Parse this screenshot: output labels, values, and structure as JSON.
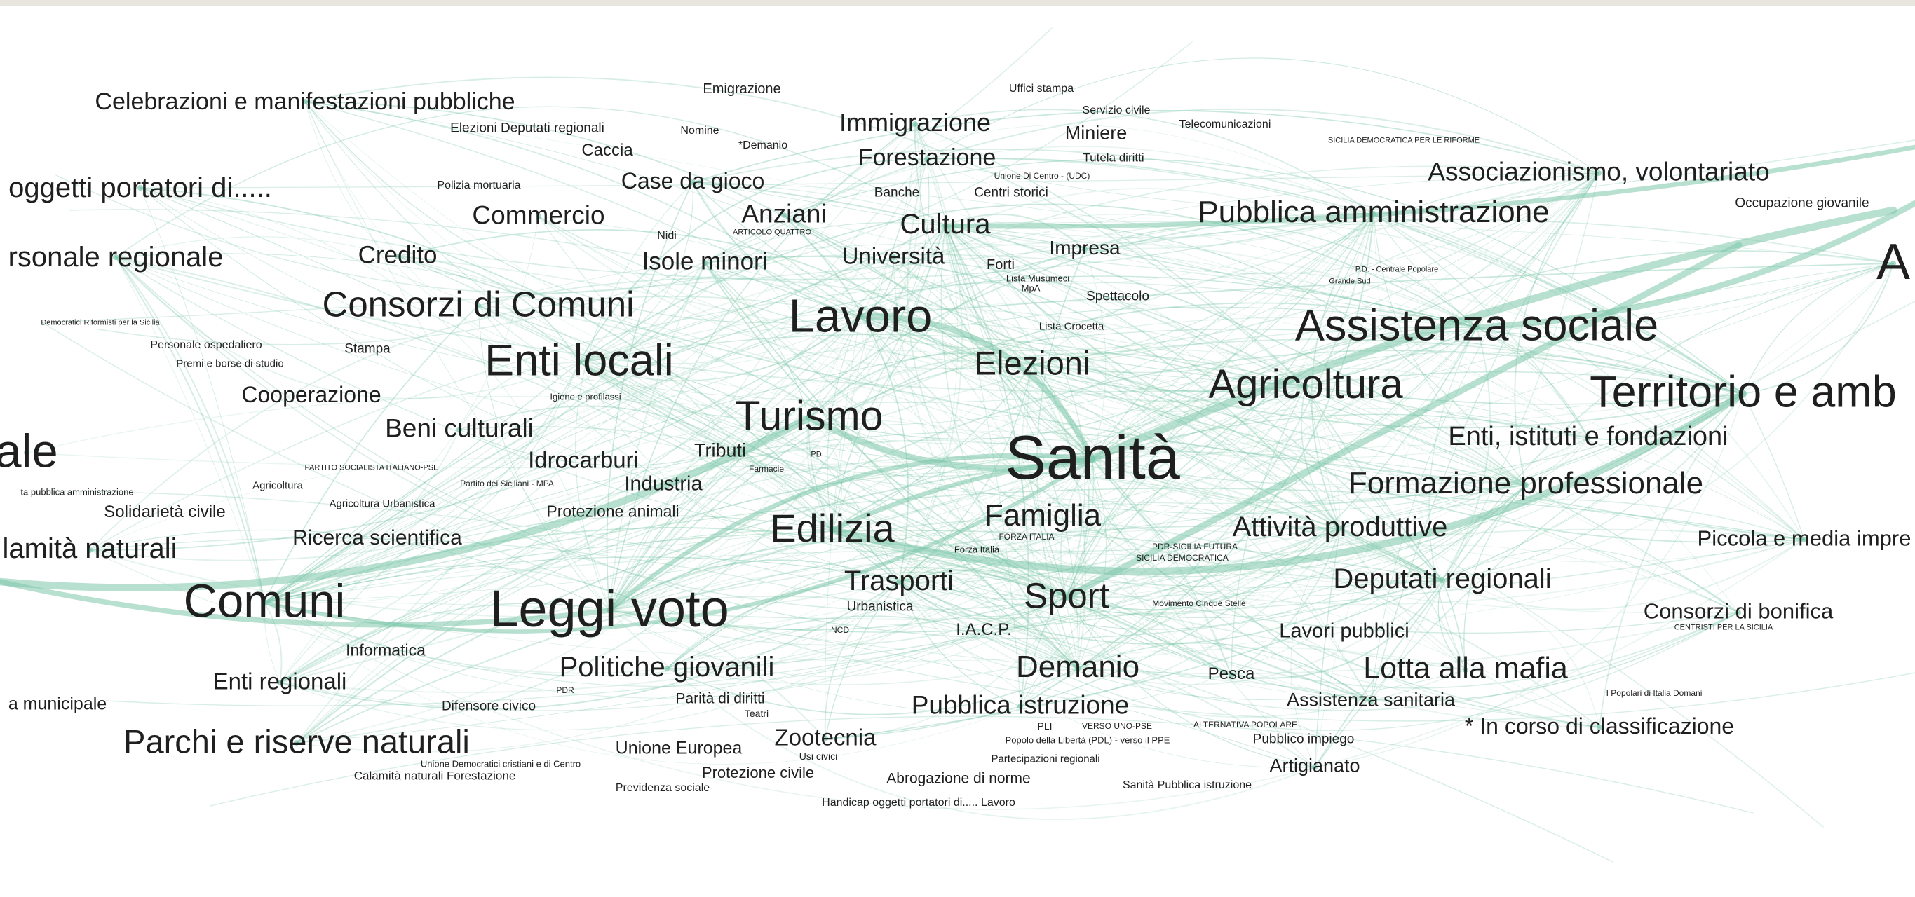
{
  "diagram": {
    "type": "network-graph",
    "edge_color": "#7ec7ab",
    "node_color": "#7ec7ab",
    "label_color": "#1f1f1f",
    "background": "#ffffff"
  },
  "labels": [
    "Celebrazioni e manifestazioni pubbliche",
    "Emigrazione",
    "Uffici stampa",
    "Servizio civile",
    "Elezioni Deputati regionali",
    "Nomine",
    "*Demanio",
    "Immigrazione",
    "Miniere",
    "Telecomunicazioni",
    "Caccia",
    "Forestazione",
    "Tutela diritti",
    "Unione Di Centro - (UDC)",
    "SICILIA DEMOCRATICA PER LE RIFORME",
    "oggetti portatori di.....",
    "Polizia mortuaria",
    "Case da gioco",
    "Banche",
    "Centri storici",
    "Associazionismo, volontariato",
    "Commercio",
    "Anziani",
    "Nidi",
    "ARTICOLO QUATTRO",
    "Cultura",
    "Pubblica amministrazione",
    "Occupazione giovanile",
    "Credito",
    "Isole minori",
    "Università",
    "Forti",
    "Impresa",
    "A",
    "rsonale regionale",
    "P.D. - Centrale Popolare",
    "Grande Sud",
    "Lista Musumeci",
    "MpA",
    "Spettacolo",
    "Consorzi di Comuni",
    "Lavoro",
    "Democratici Riformisti per la Sicilia",
    "Lista Crocetta",
    "Assistenza sociale",
    "Personale ospedaliero",
    "Stampa",
    "Premi e borse di studio",
    "Enti locali",
    "Elezioni",
    "Agricoltura",
    "Territorio e amb",
    "Cooperazione",
    "Igiene e profilassi",
    "Turismo",
    "Beni culturali",
    "Enti, istituti e fondazioni",
    "Sanità",
    "ale",
    "Tributi",
    "PARTITO SOCIALISTA ITALIANO-PSE",
    "Idrocarburi",
    "PD",
    "Farmacie",
    "Agricoltura",
    "Partito dei Siciliani - MPA",
    "Industria",
    "Formazione professionale",
    "ta pubblica amministrazione",
    "Solidarietà civile",
    "Agricoltura Urbanistica",
    "Protezione animali",
    "Famiglia",
    "Edilizia",
    "FORZA ITALIA",
    "Attività produttive",
    "Piccola e media impre",
    "Ricerca scientifica",
    "PDR-SICILIA FUTURA",
    "SICILIA DEMOCRATICA",
    "lamità naturali",
    "Forza Italia",
    "Deputati regionali",
    "Trasporti",
    "Comuni",
    "Sport",
    "Urbanistica",
    "Leggi voto",
    "Movimento Cinque Stelle",
    "Consorzi di bonifica",
    "CENTRISTI PER LA SICILIA",
    "NCD",
    "I.A.C.P.",
    "Lavori pubblici",
    "Informatica",
    "Politiche giovanili",
    "Demanio",
    "Lotta alla mafia",
    "Enti regionali",
    "Pesca",
    "PDR",
    "Parità di diritti",
    "I Popolari di Italia Domani",
    "Assistenza sanitaria",
    "a municipale",
    "Difensore civico",
    "Teatri",
    "Pubblica istruzione",
    "ALTERNATIVA POPOLARE",
    "* In corso di classificazione",
    "PLI",
    "VERSO UNO-PSE",
    "Zootecnia",
    "Parchi e riserve naturali",
    "Pubblico impiego",
    "Unione Europea",
    "Usi civici",
    "Popolo della Libertà (PDL) - verso il PPE",
    "Unione Democratici cristiani e di Centro",
    "Partecipazioni regionali",
    "Artigianato",
    "Protezione civile",
    "Calamità naturali Forestazione",
    "Abrogazione di norme",
    "Previdenza sociale",
    "Sanità Pubblica istruzione",
    "Handicap oggetti portatori di..... Lavoro"
  ]
}
